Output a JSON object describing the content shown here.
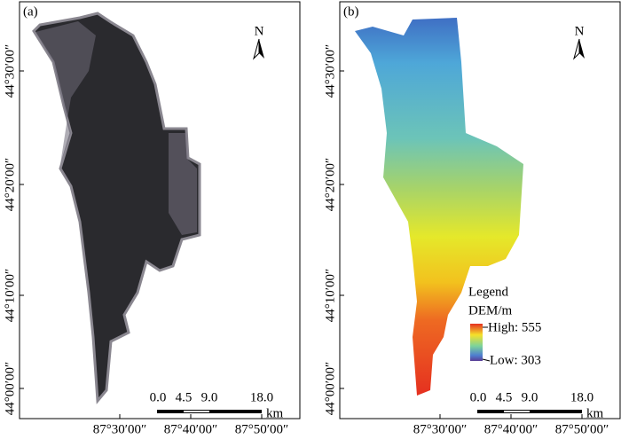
{
  "panels": [
    {
      "label": "(a)",
      "north": "N",
      "lat_labels": [
        "44°30′00″",
        "44°20′00″",
        "44°10′00″",
        "44°00′00″"
      ],
      "lon_labels": [
        "87°30′00″",
        "87°40′00″",
        "87°50′00″"
      ],
      "scale_labels": [
        "0.0",
        "4.5",
        "9.0",
        "18.0"
      ],
      "scale_unit": "km"
    },
    {
      "label": "(b)",
      "north": "N",
      "lat_labels": [
        "44°30′00″",
        "44°20′00″",
        "44°10′00″",
        "44°00′00″"
      ],
      "lon_labels": [
        "87°30′00″",
        "87°40′00″",
        "87°50′00″"
      ],
      "scale_labels": [
        "0.0",
        "4.5",
        "9.0",
        "18.0"
      ],
      "scale_unit": "km",
      "legend": {
        "title": "Legend",
        "subtitle": "DEM/m",
        "high": "High: 555",
        "low": "Low: 303"
      }
    }
  ]
}
